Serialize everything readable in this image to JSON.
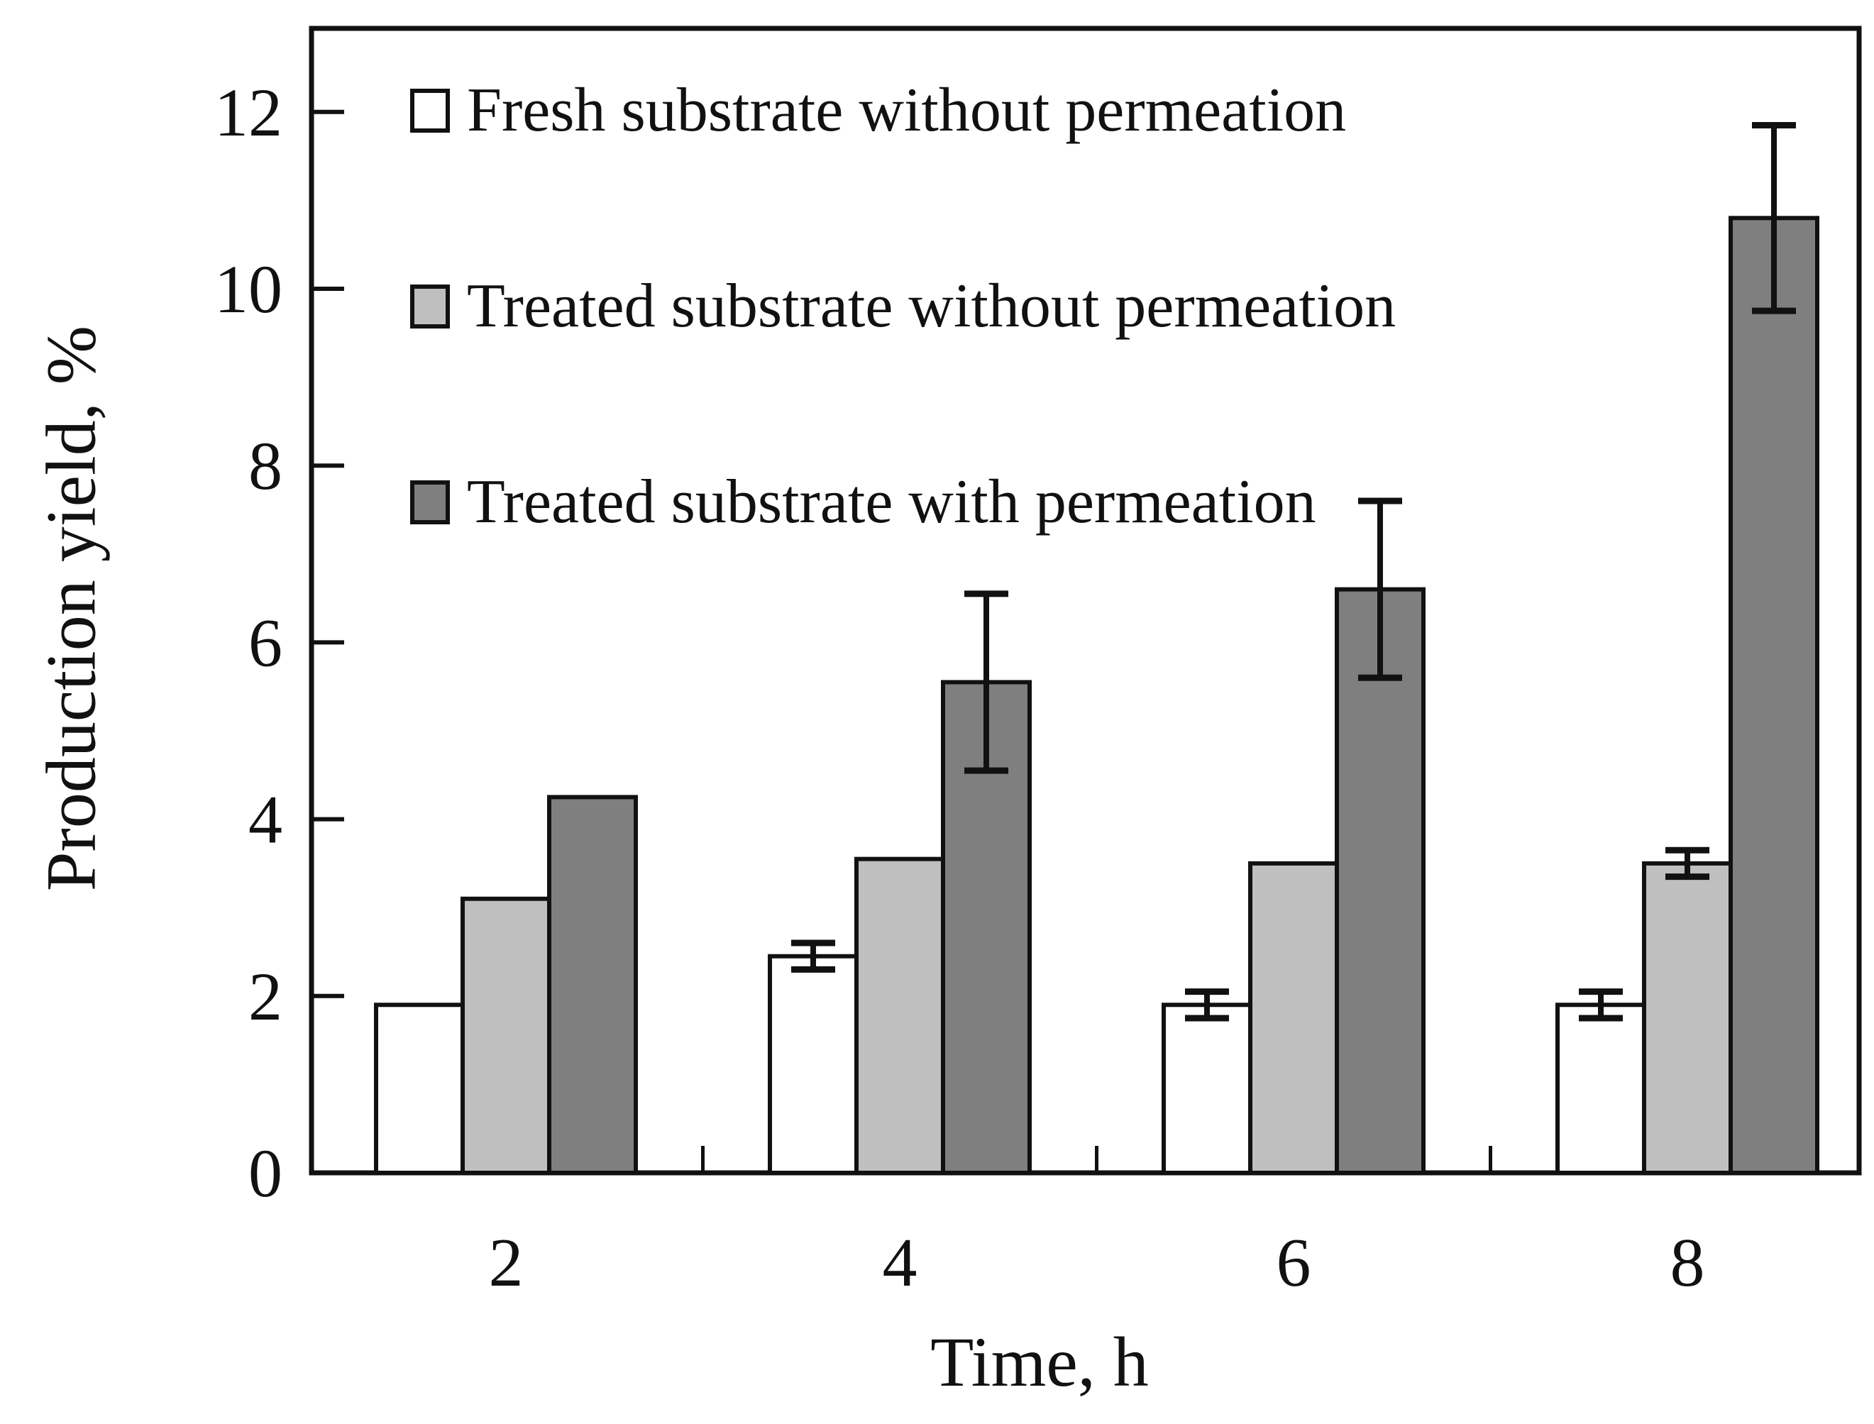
{
  "figure": {
    "background": "#ffffff",
    "frame_color": "#111111"
  },
  "chart_data": {
    "type": "bar",
    "title": "",
    "xlabel": "Time, h",
    "ylabel": "Production yield, %",
    "categories": [
      "2",
      "4",
      "6",
      "8"
    ],
    "series": [
      {
        "name": "Fresh substrate without permeation",
        "color": "#ffffff",
        "border_color": "#111111",
        "values": [
          1.9,
          2.45,
          1.9,
          1.9
        ],
        "errors": [
          null,
          0.15,
          0.15,
          0.15
        ]
      },
      {
        "name": "Treated substrate without permeation",
        "color": "#bfbfbf",
        "border_color": "#111111",
        "values": [
          3.1,
          3.55,
          3.5,
          3.5
        ],
        "errors": [
          null,
          null,
          null,
          0.15
        ]
      },
      {
        "name": "Treated substrate with permeation",
        "color": "#7f7f7f",
        "border_color": "#111111",
        "values": [
          4.25,
          5.55,
          6.6,
          10.8
        ],
        "errors": [
          null,
          1.0,
          1.0,
          1.05
        ]
      }
    ],
    "y_axis": {
      "min": 0,
      "max": 12,
      "tick_step": 2,
      "tick_labels": [
        "0",
        "2",
        "4",
        "6",
        "8",
        "10",
        "12"
      ]
    },
    "x_axis": {
      "tick_labels": [
        "2",
        "4",
        "6",
        "8"
      ]
    },
    "legend_position": "top-left-inside",
    "grid": false,
    "error_bar_color": "#111111"
  }
}
